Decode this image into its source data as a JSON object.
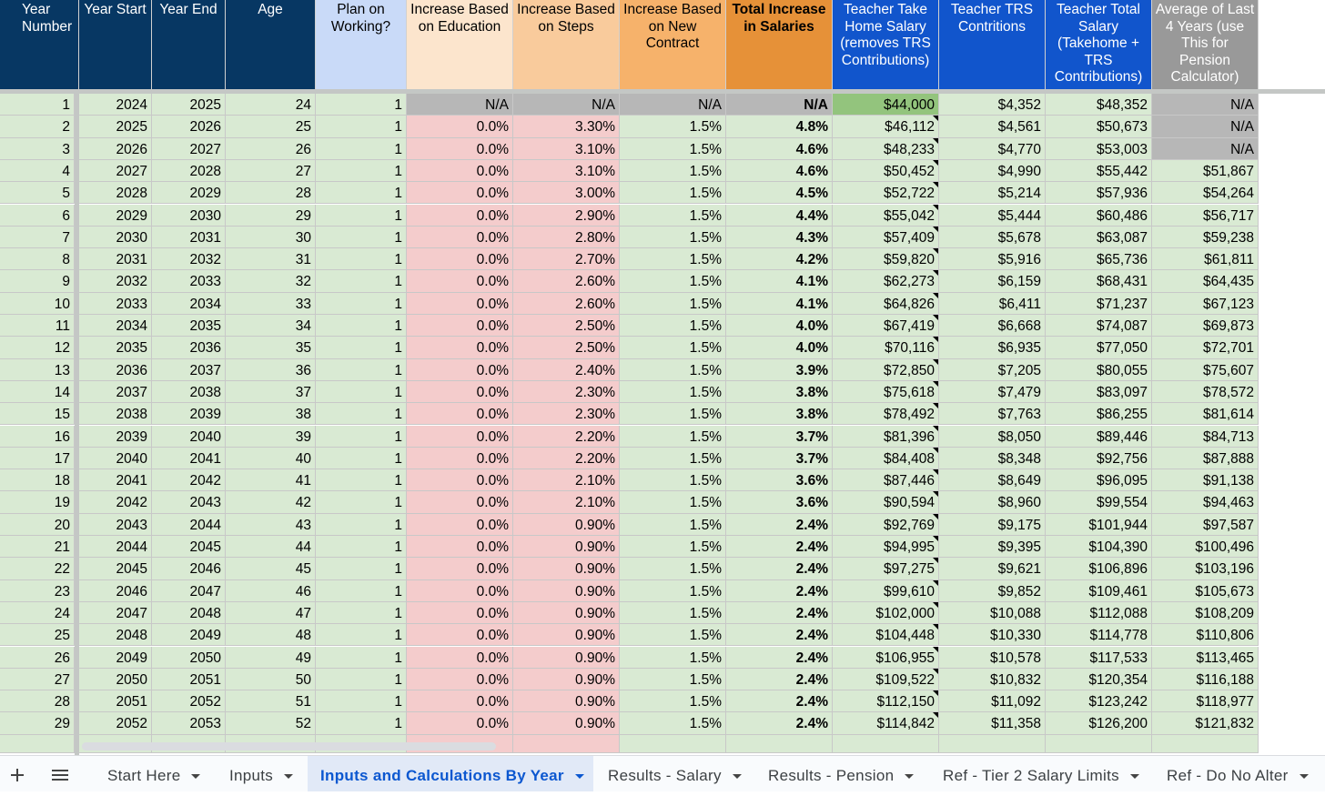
{
  "table": {
    "headers": [
      "Year Number",
      "Year Start",
      "Year End",
      "Age",
      "Plan on Working?",
      "Increase Based on Education",
      "Increase Based on Steps",
      "Increase Based on New Contract",
      "Total Increase in Salaries",
      "Teacher Take Home Salary (removes TRS Contributions)",
      "Teacher TRS Contritions",
      "Teacher Total Salary (Takehome + TRS Contributions)",
      "Average of Last 4 Years (use This for Pension Calculator)"
    ],
    "rows": [
      [
        "1",
        "2024",
        "2025",
        "24",
        "1",
        "N/A",
        "N/A",
        "N/A",
        "N/A",
        "$44,000",
        "$4,352",
        "$48,352",
        "N/A"
      ],
      [
        "2",
        "2025",
        "2026",
        "25",
        "1",
        "0.0%",
        "3.30%",
        "1.5%",
        "4.8%",
        "$46,112",
        "$4,561",
        "$50,673",
        "N/A"
      ],
      [
        "3",
        "2026",
        "2027",
        "26",
        "1",
        "0.0%",
        "3.10%",
        "1.5%",
        "4.6%",
        "$48,233",
        "$4,770",
        "$53,003",
        "N/A"
      ],
      [
        "4",
        "2027",
        "2028",
        "27",
        "1",
        "0.0%",
        "3.10%",
        "1.5%",
        "4.6%",
        "$50,452",
        "$4,990",
        "$55,442",
        "$51,867"
      ],
      [
        "5",
        "2028",
        "2029",
        "28",
        "1",
        "0.0%",
        "3.00%",
        "1.5%",
        "4.5%",
        "$52,722",
        "$5,214",
        "$57,936",
        "$54,264"
      ],
      [
        "6",
        "2029",
        "2030",
        "29",
        "1",
        "0.0%",
        "2.90%",
        "1.5%",
        "4.4%",
        "$55,042",
        "$5,444",
        "$60,486",
        "$56,717"
      ],
      [
        "7",
        "2030",
        "2031",
        "30",
        "1",
        "0.0%",
        "2.80%",
        "1.5%",
        "4.3%",
        "$57,409",
        "$5,678",
        "$63,087",
        "$59,238"
      ],
      [
        "8",
        "2031",
        "2032",
        "31",
        "1",
        "0.0%",
        "2.70%",
        "1.5%",
        "4.2%",
        "$59,820",
        "$5,916",
        "$65,736",
        "$61,811"
      ],
      [
        "9",
        "2032",
        "2033",
        "32",
        "1",
        "0.0%",
        "2.60%",
        "1.5%",
        "4.1%",
        "$62,273",
        "$6,159",
        "$68,431",
        "$64,435"
      ],
      [
        "10",
        "2033",
        "2034",
        "33",
        "1",
        "0.0%",
        "2.60%",
        "1.5%",
        "4.1%",
        "$64,826",
        "$6,411",
        "$71,237",
        "$67,123"
      ],
      [
        "11",
        "2034",
        "2035",
        "34",
        "1",
        "0.0%",
        "2.50%",
        "1.5%",
        "4.0%",
        "$67,419",
        "$6,668",
        "$74,087",
        "$69,873"
      ],
      [
        "12",
        "2035",
        "2036",
        "35",
        "1",
        "0.0%",
        "2.50%",
        "1.5%",
        "4.0%",
        "$70,116",
        "$6,935",
        "$77,050",
        "$72,701"
      ],
      [
        "13",
        "2036",
        "2037",
        "36",
        "1",
        "0.0%",
        "2.40%",
        "1.5%",
        "3.9%",
        "$72,850",
        "$7,205",
        "$80,055",
        "$75,607"
      ],
      [
        "14",
        "2037",
        "2038",
        "37",
        "1",
        "0.0%",
        "2.30%",
        "1.5%",
        "3.8%",
        "$75,618",
        "$7,479",
        "$83,097",
        "$78,572"
      ],
      [
        "15",
        "2038",
        "2039",
        "38",
        "1",
        "0.0%",
        "2.30%",
        "1.5%",
        "3.8%",
        "$78,492",
        "$7,763",
        "$86,255",
        "$81,614"
      ],
      [
        "16",
        "2039",
        "2040",
        "39",
        "1",
        "0.0%",
        "2.20%",
        "1.5%",
        "3.7%",
        "$81,396",
        "$8,050",
        "$89,446",
        "$84,713"
      ],
      [
        "17",
        "2040",
        "2041",
        "40",
        "1",
        "0.0%",
        "2.20%",
        "1.5%",
        "3.7%",
        "$84,408",
        "$8,348",
        "$92,756",
        "$87,888"
      ],
      [
        "18",
        "2041",
        "2042",
        "41",
        "1",
        "0.0%",
        "2.10%",
        "1.5%",
        "3.6%",
        "$87,446",
        "$8,649",
        "$96,095",
        "$91,138"
      ],
      [
        "19",
        "2042",
        "2043",
        "42",
        "1",
        "0.0%",
        "2.10%",
        "1.5%",
        "3.6%",
        "$90,594",
        "$8,960",
        "$99,554",
        "$94,463"
      ],
      [
        "20",
        "2043",
        "2044",
        "43",
        "1",
        "0.0%",
        "0.90%",
        "1.5%",
        "2.4%",
        "$92,769",
        "$9,175",
        "$101,944",
        "$97,587"
      ],
      [
        "21",
        "2044",
        "2045",
        "44",
        "1",
        "0.0%",
        "0.90%",
        "1.5%",
        "2.4%",
        "$94,995",
        "$9,395",
        "$104,390",
        "$100,496"
      ],
      [
        "22",
        "2045",
        "2046",
        "45",
        "1",
        "0.0%",
        "0.90%",
        "1.5%",
        "2.4%",
        "$97,275",
        "$9,621",
        "$106,896",
        "$103,196"
      ],
      [
        "23",
        "2046",
        "2047",
        "46",
        "1",
        "0.0%",
        "0.90%",
        "1.5%",
        "2.4%",
        "$99,610",
        "$9,852",
        "$109,461",
        "$105,673"
      ],
      [
        "24",
        "2047",
        "2048",
        "47",
        "1",
        "0.0%",
        "0.90%",
        "1.5%",
        "2.4%",
        "$102,000",
        "$10,088",
        "$112,088",
        "$108,209"
      ],
      [
        "25",
        "2048",
        "2049",
        "48",
        "1",
        "0.0%",
        "0.90%",
        "1.5%",
        "2.4%",
        "$104,448",
        "$10,330",
        "$114,778",
        "$110,806"
      ],
      [
        "26",
        "2049",
        "2050",
        "49",
        "1",
        "0.0%",
        "0.90%",
        "1.5%",
        "2.4%",
        "$106,955",
        "$10,578",
        "$117,533",
        "$113,465"
      ],
      [
        "27",
        "2050",
        "2051",
        "50",
        "1",
        "0.0%",
        "0.90%",
        "1.5%",
        "2.4%",
        "$109,522",
        "$10,832",
        "$120,354",
        "$116,188"
      ],
      [
        "28",
        "2051",
        "2052",
        "51",
        "1",
        "0.0%",
        "0.90%",
        "1.5%",
        "2.4%",
        "$112,150",
        "$11,092",
        "$123,242",
        "$118,977"
      ],
      [
        "29",
        "2052",
        "2053",
        "52",
        "1",
        "0.0%",
        "0.90%",
        "1.5%",
        "2.4%",
        "$114,842",
        "$11,358",
        "$126,200",
        "$121,832"
      ]
    ]
  },
  "tabs": [
    "Start Here",
    "Inputs",
    "Inputs and Calculations By Year",
    "Results - Salary",
    "Results - Pension",
    "Ref - Tier 2 Salary Limits",
    "Ref - Do No Alter"
  ]
}
